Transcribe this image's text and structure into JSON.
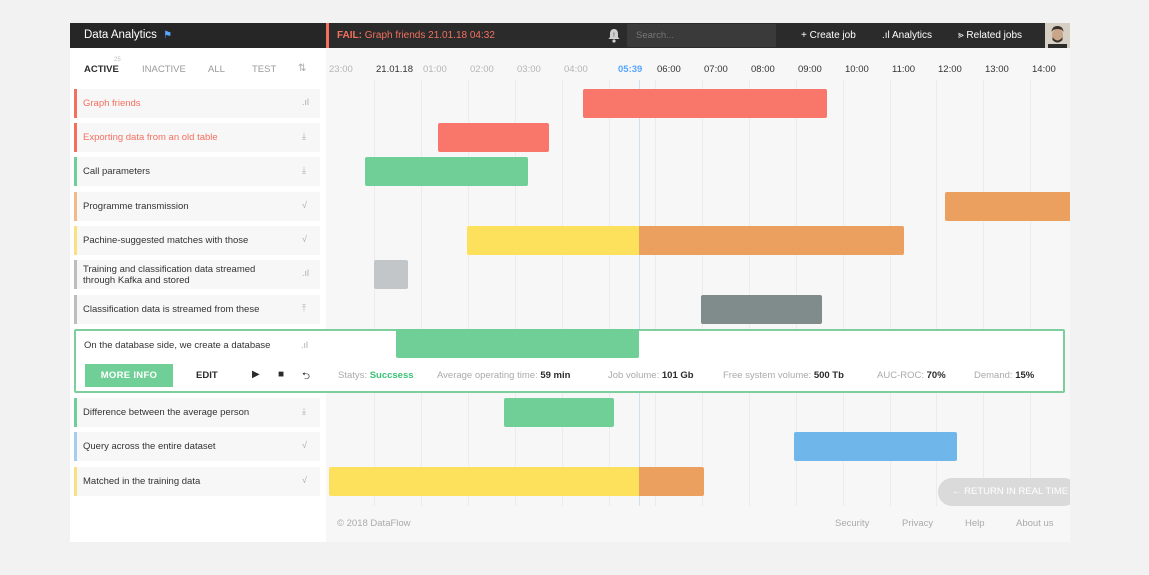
{
  "app": {
    "title": "Data Analytics",
    "title_icon": "flag-icon"
  },
  "topbar": {
    "fail_prefix": "FAIL:",
    "fail_text": "Graph friends 21.01.18 04:32",
    "search_placeholder": "Search...",
    "create_job": "+ Create job",
    "analytics": ".ıl Analytics",
    "related_jobs": "⪢ Related jobs"
  },
  "tabs": {
    "active": "ACTIVE",
    "inactive": "INACTIVE",
    "all": "ALL",
    "test": "TEST",
    "badge": "25"
  },
  "timeline": {
    "hours": [
      "23:00",
      "21.01.18",
      "01:00",
      "02:00",
      "03:00",
      "04:00",
      "05:39",
      "06:00",
      "07:00",
      "08:00",
      "09:00",
      "10:00",
      "11:00",
      "12:00",
      "13:00",
      "14:00"
    ],
    "now": "05:39"
  },
  "jobs": [
    {
      "label": "Graph friends",
      "status_color": "#f3705f",
      "icon": "bar-chart-icon",
      "glyph": ".ıl"
    },
    {
      "label": "Exporting data from an old table",
      "status_color": "#f3705f",
      "icon": "download-icon",
      "glyph": "⤓"
    },
    {
      "label": "Call parameters",
      "status_color": "#6fcf97",
      "icon": "download-icon",
      "glyph": "⤓"
    },
    {
      "label": "Programme transmission",
      "status_color": "#f2b98a",
      "icon": "check-icon",
      "glyph": "√"
    },
    {
      "label": "Pachine-suggested matches with those",
      "status_color": "#fbe083",
      "icon": "check-icon",
      "glyph": "√"
    },
    {
      "label": "Training and classification data streamed through Kafka and stored",
      "status_color": "#bdbdbd",
      "icon": "bar-chart-icon",
      "glyph": ".ıl"
    },
    {
      "label": "Classification data is streamed from these",
      "status_color": "#bdbdbd",
      "icon": "upload-icon",
      "glyph": "⤒"
    },
    {
      "label": "Difference between the average person",
      "status_color": "#6fcf97",
      "icon": "download-icon",
      "glyph": "⤓"
    },
    {
      "label": "Query across the entire dataset",
      "status_color": "#a6cdf0",
      "icon": "check-icon",
      "glyph": "√"
    },
    {
      "label": "Matched in the training data",
      "status_color": "#fbe083",
      "icon": "check-icon",
      "glyph": "√"
    }
  ],
  "expanded": {
    "label": "On the database side, we create a database",
    "icon": "bar-chart-icon",
    "glyph": ".ıl",
    "more_info": "MORE INFO",
    "edit": "EDIT",
    "status_label": "Statys:",
    "status_value": "Succsess",
    "avg_time_label": "Average operating time:",
    "avg_time_value": "59 min",
    "job_volume_label": "Job volume:",
    "job_volume_value": "101 Gb",
    "free_volume_label": "Free system volume:",
    "free_volume_value": "500 Tb",
    "auc_label": "AUC-ROC:",
    "auc_value": "70%",
    "demand_label": "Demand:",
    "demand_value": "15%"
  },
  "colors": {
    "red": "#f9766b",
    "green": "#6fcf97",
    "orange": "#eba060",
    "yellow": "#fde05c",
    "gray": "#c3c6c8",
    "darkgray": "#808b8b",
    "blue": "#6fb6ea",
    "accent": "#58a6ff"
  },
  "return_button": "← RETURN IN REAL TIME",
  "footer": {
    "copyright": "© 2018 DataFlow",
    "security": "Security",
    "privacy": "Privacy",
    "help": "Help",
    "about": "About us"
  }
}
